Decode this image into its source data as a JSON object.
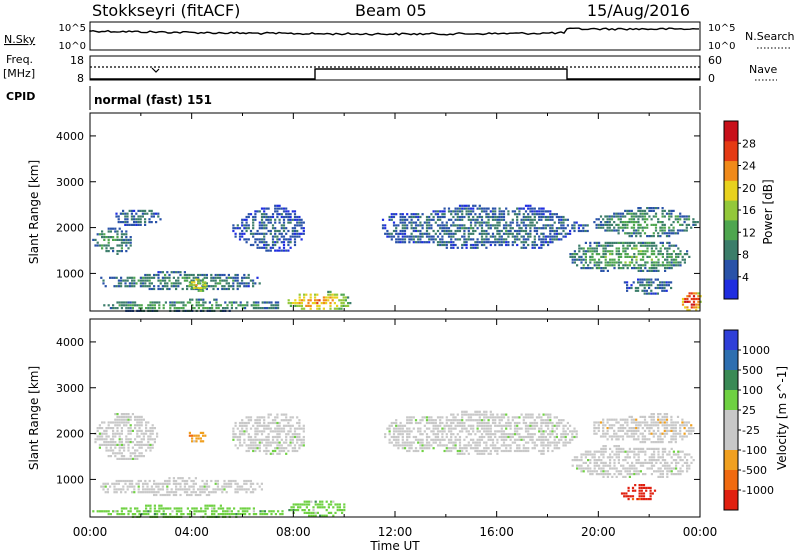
{
  "header": {
    "station": "Stokkseyri (fitACF)",
    "beam": "Beam 05",
    "date": "15/Aug/2016"
  },
  "side_labels": {
    "nsky": "N.Sky",
    "nsky_top": "10^5",
    "nsky_bottom": "10^0",
    "freq_line1": "Freq.",
    "freq_line2": "[MHz]",
    "freq_top": "18",
    "freq_bottom": "8",
    "cpid": "CPID",
    "nsearch": "N.Search",
    "nsearch_top": "10^5",
    "nsearch_bottom": "10^0",
    "nave": "Nave",
    "nave_top": "60",
    "nave_bottom": "0",
    "program": "normal (fast) 151"
  },
  "colors": {
    "power_scale": [
      "#1f2de0",
      "#2952a8",
      "#3b7d6a",
      "#4ea64f",
      "#93c83a",
      "#e8d21e",
      "#f08a1a",
      "#e53a14",
      "#c8101a"
    ],
    "velocity_scale": [
      "#2f3fd8",
      "#2e6fb0",
      "#3a8a55",
      "#6fd142",
      "#c8c8c8",
      "#c8c8c8",
      "#f0a020",
      "#f06a10",
      "#e02010"
    ]
  },
  "chart_data": [
    {
      "type": "heatmap",
      "name": "power-panel",
      "ylabel": "Slant Range [km]",
      "yticks": [
        "1000",
        "2000",
        "3000",
        "4000"
      ],
      "ylim": [
        180,
        4500
      ],
      "xlim": [
        0,
        24
      ],
      "colorbar_label": "Power [dB]",
      "colorbar_ticks": [
        "4",
        "8",
        "12",
        "16",
        "20",
        "24",
        "28"
      ],
      "colorbar_range": [
        0,
        32
      ],
      "echo_regions": [
        {
          "t0": 0.0,
          "t1": 1.6,
          "r0": 1450,
          "r1": 2000,
          "level": 10
        },
        {
          "t0": 1.0,
          "t1": 2.8,
          "r0": 2050,
          "r1": 2450,
          "level": 7
        },
        {
          "t0": 0.4,
          "t1": 6.8,
          "r0": 650,
          "r1": 1050,
          "level": 9
        },
        {
          "t0": 3.8,
          "t1": 4.6,
          "r0": 600,
          "r1": 950,
          "level": 18
        },
        {
          "t0": 5.6,
          "t1": 8.4,
          "r0": 1500,
          "r1": 2500,
          "level": 6
        },
        {
          "t0": 0.0,
          "t1": 7.6,
          "r0": 180,
          "r1": 450,
          "level": 10
        },
        {
          "t0": 7.6,
          "t1": 10.2,
          "r0": 200,
          "r1": 620,
          "level": 20
        },
        {
          "t0": 11.4,
          "t1": 19.6,
          "r0": 1550,
          "r1": 2500,
          "level": 7
        },
        {
          "t0": 18.6,
          "t1": 23.8,
          "r0": 1050,
          "r1": 1750,
          "level": 11
        },
        {
          "t0": 19.8,
          "t1": 24.0,
          "r0": 1800,
          "r1": 2450,
          "level": 10
        },
        {
          "t0": 23.2,
          "t1": 24.0,
          "r0": 180,
          "r1": 650,
          "level": 27
        },
        {
          "t0": 21.0,
          "t1": 23.0,
          "r0": 550,
          "r1": 950,
          "level": 7
        }
      ]
    },
    {
      "type": "heatmap",
      "name": "velocity-panel",
      "ylabel": "Slant Range [km]",
      "yticks": [
        "1000",
        "2000",
        "3000",
        "4000"
      ],
      "ylim": [
        180,
        4500
      ],
      "xlim": [
        0,
        24
      ],
      "xticks": [
        "00:00",
        "04:00",
        "08:00",
        "12:00",
        "16:00",
        "20:00",
        "00:00"
      ],
      "xlabel": "Time UT",
      "colorbar_label": "Velocity [m s^-1]",
      "colorbar_ticks": [
        "1000",
        "500",
        "100",
        "25",
        "-25",
        "-100",
        "-500",
        "-1000"
      ],
      "echo_regions": [
        {
          "t0": 0.0,
          "t1": 2.8,
          "r0": 1450,
          "r1": 2450,
          "class": 4
        },
        {
          "t0": 0.4,
          "t1": 6.8,
          "r0": 650,
          "r1": 1050,
          "class": 4
        },
        {
          "t0": 3.8,
          "t1": 4.6,
          "r0": 1800,
          "r1": 2100,
          "class": 6
        },
        {
          "t0": 5.6,
          "t1": 8.4,
          "r0": 1500,
          "r1": 2500,
          "class": 4
        },
        {
          "t0": 0.0,
          "t1": 7.6,
          "r0": 180,
          "r1": 450,
          "class": 3
        },
        {
          "t0": 7.8,
          "t1": 10.0,
          "r0": 200,
          "r1": 600,
          "class": 3
        },
        {
          "t0": 11.4,
          "t1": 19.6,
          "r0": 1550,
          "r1": 2500,
          "class": 4
        },
        {
          "t0": 18.6,
          "t1": 23.8,
          "r0": 1050,
          "r1": 1750,
          "class": 4
        },
        {
          "t0": 19.8,
          "t1": 24.0,
          "r0": 1800,
          "r1": 2450,
          "class": 5
        },
        {
          "t0": 20.8,
          "t1": 22.2,
          "r0": 550,
          "r1": 900,
          "class": 8
        }
      ]
    }
  ]
}
